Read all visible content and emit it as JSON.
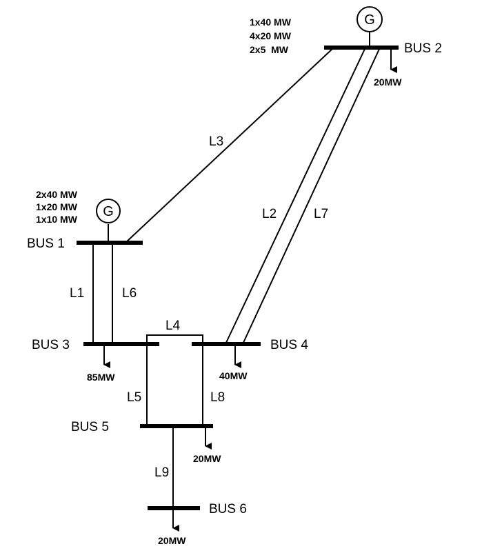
{
  "buses": {
    "bus1": "BUS 1",
    "bus2": "BUS 2",
    "bus3": "BUS 3",
    "bus4": "BUS 4",
    "bus5": "BUS 5",
    "bus6": "BUS 6"
  },
  "generators": {
    "symbol": "G",
    "gen1_units": [
      "2x40 MW",
      "1x20 MW",
      "1x10 MW"
    ],
    "gen2_units": [
      "1x40 MW",
      "4x20 MW",
      "2x5  MW"
    ]
  },
  "loads": {
    "bus2": "20MW",
    "bus3": "85MW",
    "bus4": "40MW",
    "bus5": "20MW",
    "bus6": "20MW"
  },
  "lines": {
    "l1": "L1",
    "l2": "L2",
    "l3": "L3",
    "l4": "L4",
    "l5": "L5",
    "l6": "L6",
    "l7": "L7",
    "l8": "L8",
    "l9": "L9"
  }
}
